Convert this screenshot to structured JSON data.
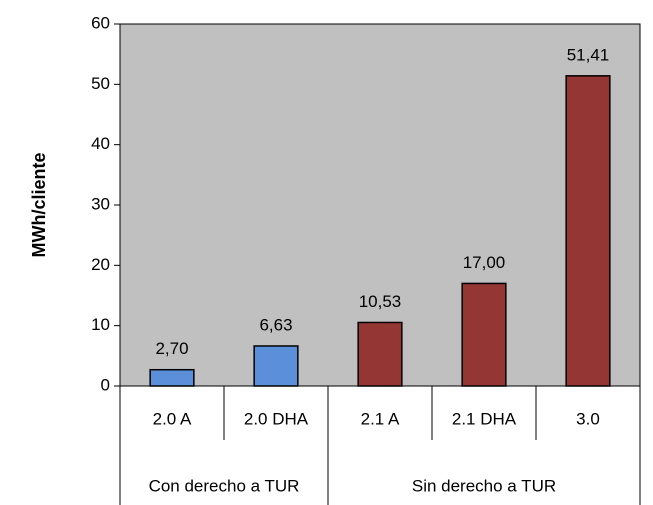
{
  "chart_data": {
    "type": "bar",
    "y_label": "MWh/cliente",
    "categories": [
      "2.0 A",
      "2.0 DHA",
      "2.1 A",
      "2.1 DHA",
      "3.0"
    ],
    "values": [
      2.7,
      6.63,
      10.53,
      17.0,
      51.41
    ],
    "value_labels": [
      "2,70",
      "6,63",
      "10,53",
      "17,00",
      "51,41"
    ],
    "colors": [
      "#5b8fd9",
      "#5b8fd9",
      "#943634",
      "#943634",
      "#943634"
    ],
    "groups": [
      {
        "name": "Con derecho a TUR",
        "count": 2
      },
      {
        "name": "Sin derecho a TUR",
        "count": 3
      }
    ],
    "ylim": [
      0,
      60
    ],
    "yticks": [
      0,
      10,
      20,
      30,
      40,
      50,
      60
    ],
    "grid": false,
    "background": "#c0c0c0"
  }
}
